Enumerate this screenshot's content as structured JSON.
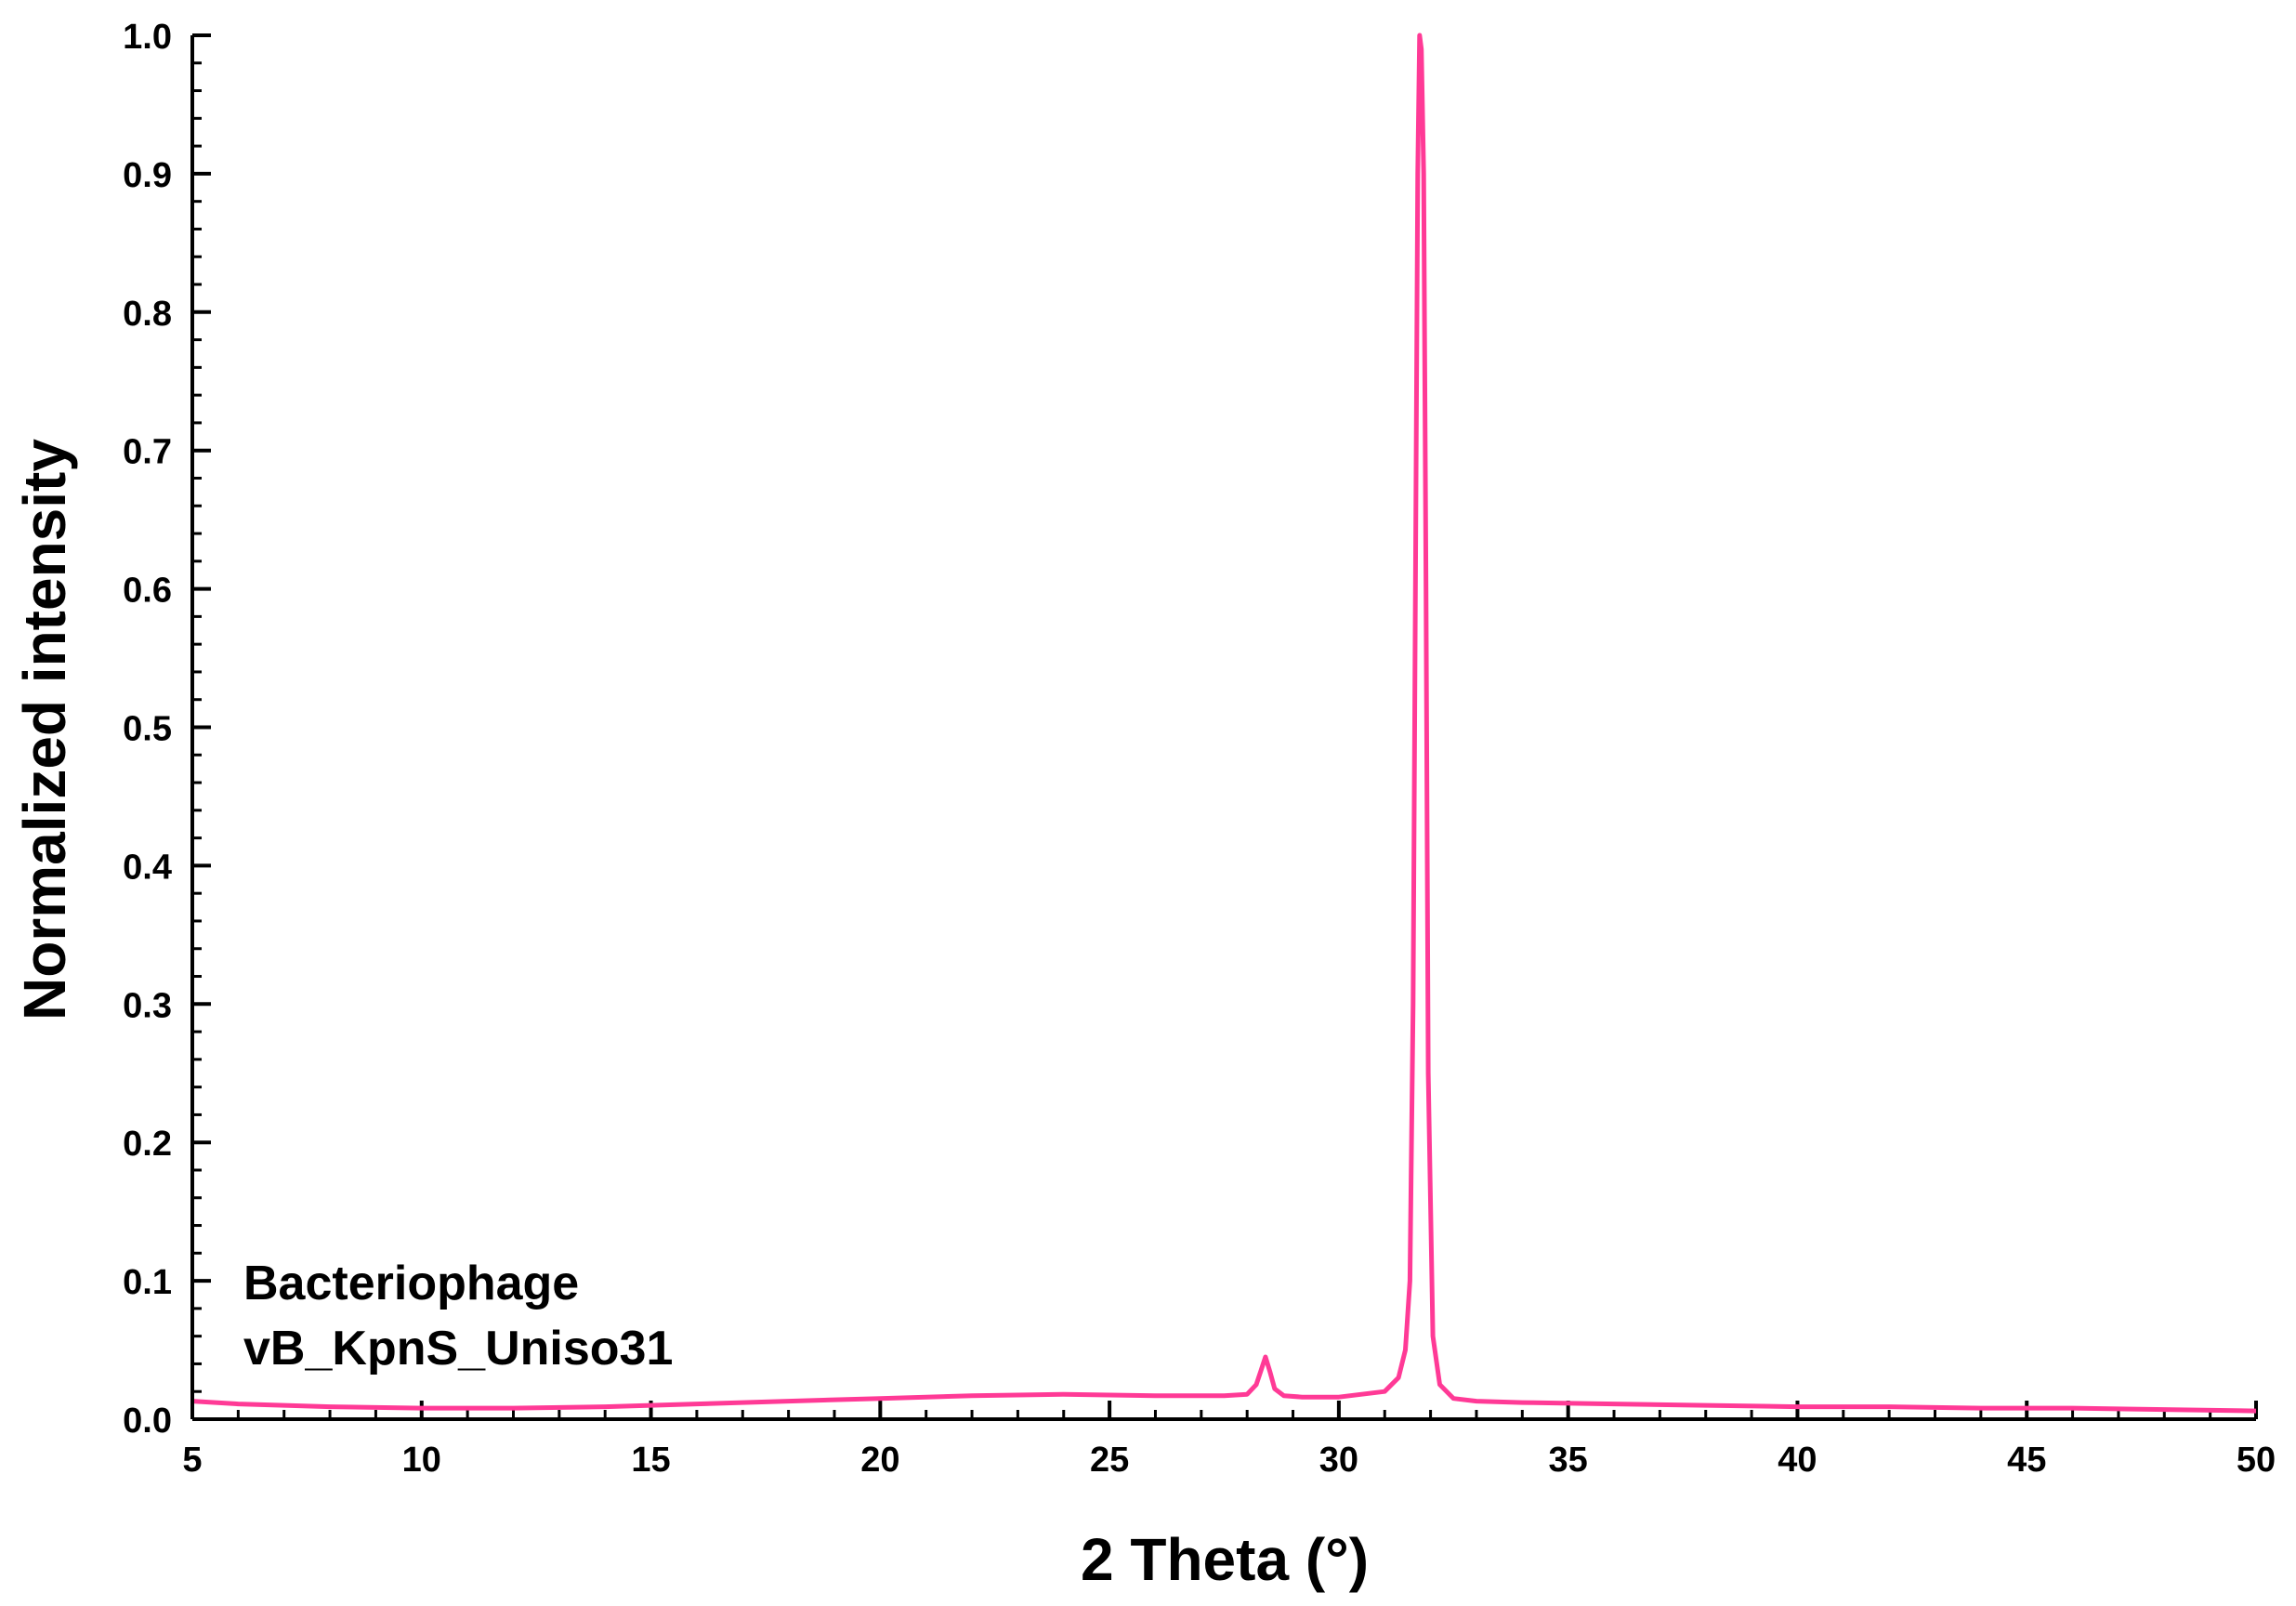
{
  "chart_data": {
    "type": "line",
    "title": "",
    "xlabel": "2 Theta (°)",
    "ylabel": "Normalized intensity",
    "xlim": [
      5,
      50
    ],
    "ylim": [
      0,
      1.0
    ],
    "x_ticks": [
      "5",
      "10",
      "15",
      "20",
      "25",
      "30",
      "35",
      "40",
      "45",
      "50"
    ],
    "y_ticks": [
      "0.0",
      "0.1",
      "0.2",
      "0.3",
      "0.4",
      "0.5",
      "0.6",
      "0.7",
      "0.8",
      "0.9",
      "1.0"
    ],
    "x_minor_step": 1,
    "y_minor_step": 0.02,
    "grid": false,
    "annotation": [
      "Bacteriophage",
      "vB_KpnS_Uniso31"
    ],
    "series": [
      {
        "color": "#ff3a96",
        "x": [
          5,
          6,
          7,
          8,
          10,
          12,
          14,
          16,
          18,
          20,
          22,
          24,
          26,
          27.5,
          28.0,
          28.2,
          28.3,
          28.4,
          28.5,
          28.6,
          28.8,
          29.2,
          30,
          31.0,
          31.3,
          31.45,
          31.55,
          31.62,
          31.67,
          31.72,
          31.76,
          31.8,
          31.85,
          31.9,
          31.95,
          32.05,
          32.2,
          32.5,
          33,
          34,
          36,
          38,
          40,
          42,
          44,
          46,
          48,
          50
        ],
        "y": [
          0.013,
          0.011,
          0.01,
          0.009,
          0.008,
          0.008,
          0.009,
          0.011,
          0.013,
          0.015,
          0.017,
          0.018,
          0.017,
          0.017,
          0.018,
          0.025,
          0.035,
          0.045,
          0.034,
          0.022,
          0.017,
          0.016,
          0.016,
          0.02,
          0.03,
          0.05,
          0.1,
          0.3,
          0.6,
          0.9,
          1.0,
          0.99,
          0.9,
          0.6,
          0.25,
          0.06,
          0.025,
          0.015,
          0.013,
          0.012,
          0.011,
          0.01,
          0.009,
          0.009,
          0.008,
          0.008,
          0.007,
          0.006
        ]
      }
    ]
  }
}
